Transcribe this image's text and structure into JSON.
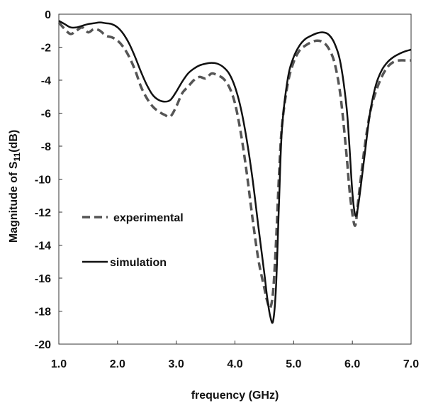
{
  "chart_data": {
    "type": "line",
    "xlabel": "frequency (GHz)",
    "ylabel_main": "Magnitude of S",
    "ylabel_sub": "11",
    "ylabel_suffix": "(dB)",
    "xlim": [
      1.0,
      7.0
    ],
    "ylim": [
      -20,
      0
    ],
    "x_ticks": [
      1.0,
      2.0,
      3.0,
      4.0,
      5.0,
      6.0,
      7.0
    ],
    "x_tick_labels": [
      "1.0",
      "2.0",
      "3.0",
      "4.0",
      "5.0",
      "6.0",
      "7.0"
    ],
    "y_ticks": [
      0,
      -2,
      -4,
      -6,
      -8,
      -10,
      -12,
      -14,
      -16,
      -18,
      -20
    ],
    "y_tick_labels": [
      "0",
      "-2",
      "-4",
      "-6",
      "-8",
      "-10",
      "-12",
      "-14",
      "-16",
      "-18",
      "-20"
    ],
    "grid": false,
    "legend_position": "middle-left",
    "series": [
      {
        "name": "experimental",
        "style": "dashed",
        "color": "#555555",
        "x": [
          1.0,
          1.1,
          1.2,
          1.3,
          1.4,
          1.5,
          1.6,
          1.7,
          1.8,
          1.9,
          2.0,
          2.1,
          2.2,
          2.3,
          2.4,
          2.5,
          2.6,
          2.7,
          2.8,
          2.9,
          3.0,
          3.1,
          3.2,
          3.3,
          3.4,
          3.5,
          3.6,
          3.7,
          3.8,
          3.9,
          4.0,
          4.1,
          4.2,
          4.3,
          4.4,
          4.5,
          4.55,
          4.6,
          4.65,
          4.7,
          4.75,
          4.8,
          4.9,
          5.0,
          5.1,
          5.2,
          5.3,
          5.4,
          5.5,
          5.6,
          5.7,
          5.8,
          5.9,
          5.95,
          6.0,
          6.05,
          6.1,
          6.2,
          6.3,
          6.4,
          6.5,
          6.6,
          6.7,
          6.8,
          6.9,
          7.0
        ],
        "values": [
          -0.5,
          -0.9,
          -1.2,
          -1.0,
          -0.8,
          -1.1,
          -0.9,
          -1.0,
          -1.3,
          -1.4,
          -1.6,
          -2.0,
          -2.6,
          -3.4,
          -4.4,
          -5.1,
          -5.6,
          -5.9,
          -6.1,
          -6.2,
          -5.6,
          -4.8,
          -4.4,
          -4.0,
          -3.8,
          -3.9,
          -3.6,
          -3.7,
          -3.9,
          -4.4,
          -5.4,
          -7.2,
          -9.6,
          -12.4,
          -14.9,
          -16.6,
          -17.4,
          -17.8,
          -16.8,
          -13.8,
          -9.8,
          -6.8,
          -4.2,
          -2.9,
          -2.2,
          -1.9,
          -1.7,
          -1.6,
          -1.7,
          -2.1,
          -3.0,
          -5.0,
          -8.5,
          -10.6,
          -12.1,
          -12.8,
          -11.3,
          -8.3,
          -6.0,
          -4.7,
          -3.8,
          -3.2,
          -2.9,
          -2.8,
          -2.8,
          -2.8
        ]
      },
      {
        "name": "simulation",
        "style": "solid",
        "color": "#111111",
        "x": [
          1.0,
          1.1,
          1.2,
          1.3,
          1.4,
          1.5,
          1.6,
          1.7,
          1.8,
          1.9,
          2.0,
          2.1,
          2.2,
          2.3,
          2.4,
          2.5,
          2.6,
          2.7,
          2.8,
          2.9,
          3.0,
          3.1,
          3.2,
          3.3,
          3.4,
          3.5,
          3.6,
          3.7,
          3.8,
          3.9,
          4.0,
          4.1,
          4.2,
          4.3,
          4.4,
          4.5,
          4.55,
          4.6,
          4.65,
          4.7,
          4.75,
          4.8,
          4.9,
          5.0,
          5.1,
          5.2,
          5.3,
          5.4,
          5.5,
          5.6,
          5.7,
          5.8,
          5.9,
          5.95,
          6.0,
          6.05,
          6.1,
          6.2,
          6.3,
          6.4,
          6.5,
          6.6,
          6.7,
          6.8,
          6.9,
          7.0
        ],
        "values": [
          -0.4,
          -0.6,
          -0.8,
          -0.8,
          -0.7,
          -0.6,
          -0.55,
          -0.5,
          -0.55,
          -0.6,
          -0.8,
          -1.2,
          -1.8,
          -2.6,
          -3.5,
          -4.3,
          -4.9,
          -5.2,
          -5.3,
          -5.2,
          -4.7,
          -4.1,
          -3.6,
          -3.3,
          -3.1,
          -3.0,
          -2.95,
          -3.0,
          -3.2,
          -3.6,
          -4.4,
          -5.7,
          -7.6,
          -10.0,
          -12.9,
          -15.7,
          -17.2,
          -18.3,
          -18.6,
          -16.5,
          -11.5,
          -7.0,
          -3.9,
          -2.6,
          -1.9,
          -1.5,
          -1.3,
          -1.15,
          -1.1,
          -1.25,
          -1.8,
          -3.0,
          -5.6,
          -8.0,
          -10.8,
          -12.2,
          -11.6,
          -8.8,
          -6.0,
          -4.3,
          -3.4,
          -2.9,
          -2.6,
          -2.4,
          -2.25,
          -2.15
        ]
      }
    ],
    "legend": [
      {
        "label": "experimental",
        "style": "dashed"
      },
      {
        "label": "simulation",
        "style": "solid"
      }
    ]
  }
}
